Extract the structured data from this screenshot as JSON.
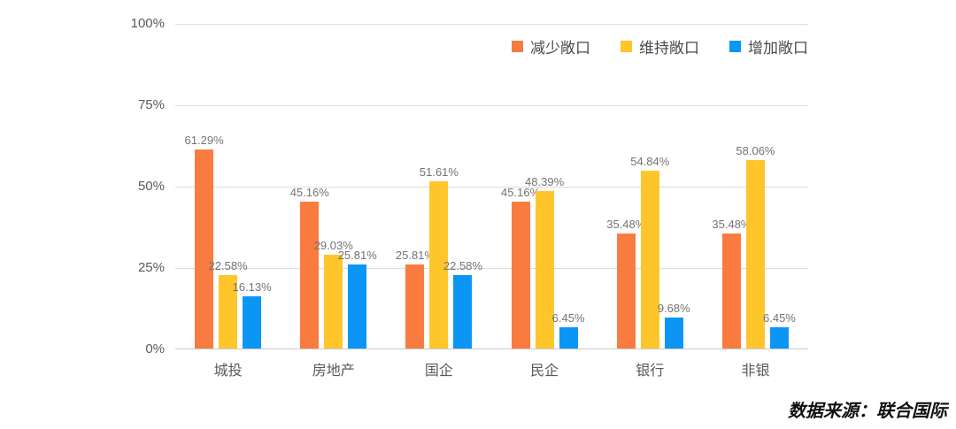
{
  "chart_data": {
    "type": "bar",
    "title": "",
    "categories": [
      "城投",
      "房地产",
      "国企",
      "民企",
      "银行",
      "非银"
    ],
    "series": [
      {
        "name": "减少敞口",
        "color": "#FA7B40",
        "values": [
          61.29,
          45.16,
          25.81,
          45.16,
          35.48,
          35.48
        ]
      },
      {
        "name": "维持敞口",
        "color": "#FFC62B",
        "values": [
          22.58,
          29.03,
          51.61,
          48.39,
          54.84,
          58.06
        ]
      },
      {
        "name": "增加敞口",
        "color": "#0B96F5",
        "values": [
          16.13,
          25.81,
          22.58,
          6.45,
          9.68,
          6.45
        ]
      }
    ],
    "xlabel": "",
    "ylabel": "",
    "ylim": [
      0,
      100
    ],
    "yticks": [
      "0%",
      "25%",
      "50%",
      "75%",
      "100%"
    ],
    "grid": true,
    "legend_position": "top-right",
    "value_label_suffix": "%"
  },
  "source_text": "数据来源：联合国际"
}
